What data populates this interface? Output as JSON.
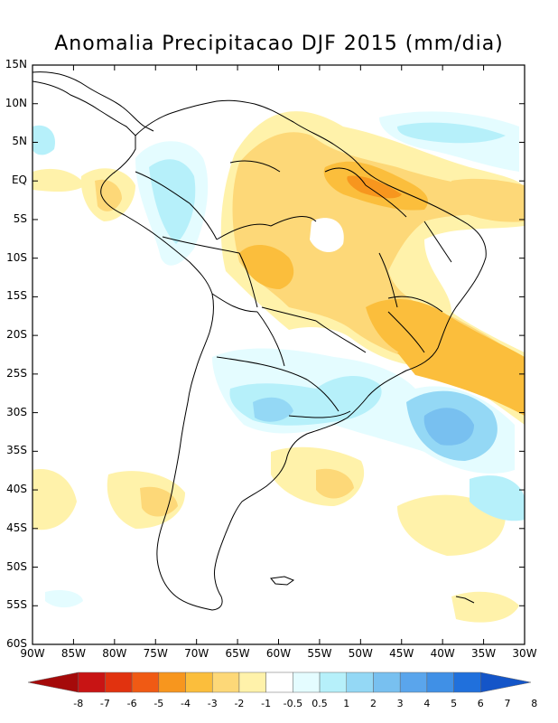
{
  "title": "Anomalia Precipitacao DJF 2015 (mm/dia)",
  "lat_labels": [
    "15N",
    "10N",
    "5N",
    "EQ",
    "5S",
    "10S",
    "15S",
    "20S",
    "25S",
    "30S",
    "35S",
    "40S",
    "45S",
    "50S",
    "55S",
    "60S"
  ],
  "lon_labels": [
    "90W",
    "85W",
    "80W",
    "75W",
    "70W",
    "65W",
    "60W",
    "55W",
    "50W",
    "45W",
    "40W",
    "35W",
    "30W"
  ],
  "colorbar": {
    "labels": [
      "-8",
      "-7",
      "-6",
      "-5",
      "-4",
      "-3",
      "-2",
      "-1",
      "-0.5",
      "0.5",
      "1",
      "2",
      "3",
      "4",
      "5",
      "6",
      "7",
      "8"
    ],
    "colors": [
      "#a50a0a",
      "#c81414",
      "#e1320f",
      "#f05a14",
      "#f7961e",
      "#fbbe3c",
      "#fdd878",
      "#fff2aa",
      "#ffffff",
      "#e4fcff",
      "#b6f0fa",
      "#94d8f5",
      "#78c0f0",
      "#5aa5ec",
      "#4090e6",
      "#2070dc",
      "#1455c8"
    ]
  }
}
